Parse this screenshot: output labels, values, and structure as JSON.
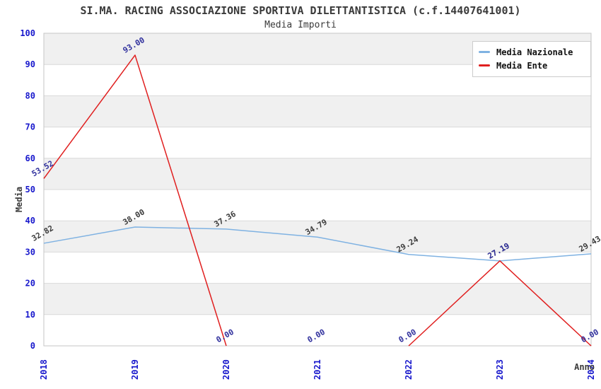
{
  "chart_data": {
    "type": "line",
    "title": "SI.MA. RACING ASSOCIAZIONE SPORTIVA DILETTANTISTICA (c.f.14407641001)",
    "subtitle": "Media Importi",
    "xlabel": "Anno",
    "ylabel": "Media",
    "x": [
      "2018",
      "2019",
      "2020",
      "2021",
      "2022",
      "2023",
      "2024"
    ],
    "ylim": [
      0,
      100
    ],
    "ytick_step": 10,
    "legend_position": "top-right",
    "grid": true,
    "series": [
      {
        "name": "Media Nazionale",
        "color": "#7fb2e2",
        "label_color": "#3c3c3c",
        "values": [
          32.82,
          38.0,
          37.36,
          34.79,
          29.24,
          27.19,
          29.43
        ],
        "labels": [
          "32.82",
          "38.00",
          "37.36",
          "34.79",
          "29.24",
          "27.19",
          "29.43"
        ],
        "drawn_segments": [
          [
            0,
            6
          ]
        ]
      },
      {
        "name": "Media Ente",
        "color": "#e01f1f",
        "label_color": "#32329e",
        "values": [
          53.52,
          93.0,
          0.0,
          0.0,
          0.0,
          27.19,
          0.0
        ],
        "labels": [
          "53.52",
          "93.00",
          "0.00",
          "0.00",
          "0.00",
          "27.19",
          "0.00"
        ],
        "drawn_segments": [
          [
            0,
            2
          ],
          [
            4,
            6
          ]
        ]
      }
    ],
    "style": {
      "band_colors": [
        "#ffffff",
        "#f0f0f0"
      ],
      "grid_color": "#d9d9d9",
      "border_color": "#c6c6c6",
      "tick_color": "#1717cc",
      "axis_title_color": "#3a3a3a",
      "data_label_font_px": 11,
      "tick_font_px": 12
    }
  }
}
